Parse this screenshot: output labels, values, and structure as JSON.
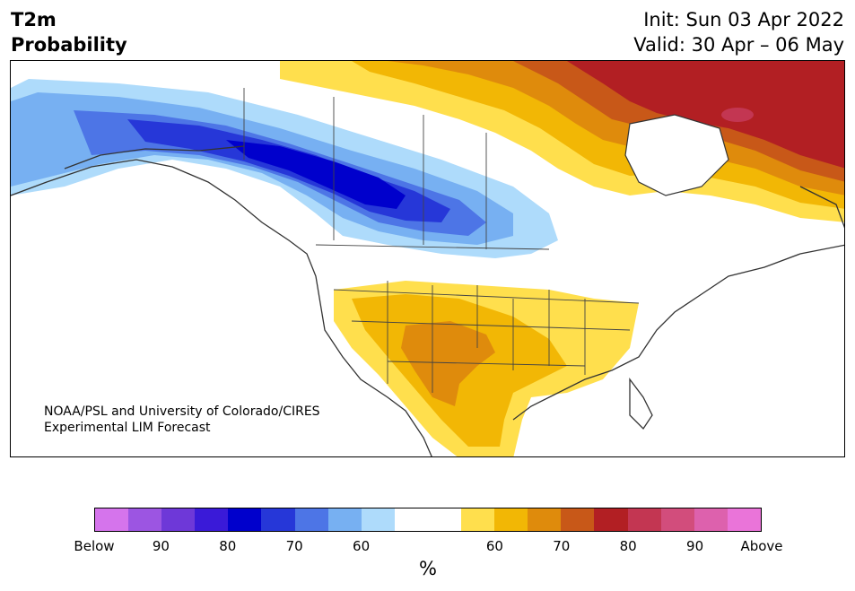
{
  "title": {
    "left_line1": "T2m",
    "left_line2": "Probability",
    "right_line1": "Init: Sun 03 Apr 2022",
    "right_line2": "Valid: 30 Apr – 06 May"
  },
  "credit": {
    "line1": "NOAA/PSL and University of Colorado/CIRES",
    "line2": "Experimental LIM Forecast"
  },
  "colorbar": {
    "colors": [
      "#d574ec",
      "#9c55e2",
      "#6e38d8",
      "#3a1ad8",
      "#0000cc",
      "#2637d8",
      "#4d75e6",
      "#77b0f2",
      "#aedbfb",
      "#ffffff",
      "#ffffff",
      "#ffdf4d",
      "#f2b705",
      "#df8b0c",
      "#c85818",
      "#b21f23",
      "#c33652",
      "#d24d7c",
      "#dd61ad",
      "#ea74d9"
    ],
    "tick_labels": [
      "Below",
      "90",
      "80",
      "70",
      "60",
      "60",
      "70",
      "80",
      "90",
      "Above"
    ],
    "unit": "%"
  },
  "legend_regions": {
    "below_normal": "blue",
    "above_normal": "red"
  }
}
